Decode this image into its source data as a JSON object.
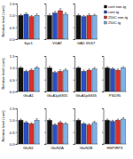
{
  "chart_data": [
    {
      "type": "bar",
      "title": "Syn1",
      "y_label": "Relative level (sum)",
      "tick_labels": "y",
      "categories": [
        null
      ],
      "ylim": [
        0,
        1.5
      ],
      "yticks": [
        {
          "value": 0,
          "label": "0.0"
        },
        {
          "value": 0.5,
          "label": "0.5"
        },
        {
          "value": 1,
          "label": "1.0"
        },
        {
          "value": 1.5,
          "label": "1.5"
        }
      ],
      "series": [
        {
          "color": "#111111",
          "values": [
            1.0
          ],
          "errors": [
            0.05
          ]
        },
        {
          "color": "#2b4fc4",
          "values": [
            1.05
          ],
          "errors": [
            0.06
          ]
        },
        {
          "color": "#d9302c",
          "values": [
            0.95
          ],
          "errors": [
            0.05
          ]
        },
        {
          "color": "#7fb2e8",
          "values": [
            1.0
          ],
          "errors": [
            0.06
          ]
        }
      ]
    },
    {
      "type": "bar",
      "title": "VGAT",
      "tick_labels": false,
      "categories": [
        null
      ],
      "ylim": [
        0,
        1.5
      ],
      "yticks": [
        0,
        0.5,
        1,
        1.5
      ],
      "series": [
        {
          "color": "#111111",
          "values": [
            1.0
          ],
          "errors": [
            0.06
          ]
        },
        {
          "color": "#2b4fc4",
          "values": [
            1.1
          ],
          "errors": [
            0.07
          ]
        },
        {
          "color": "#d9302c",
          "values": [
            1.2
          ],
          "errors": [
            0.08
          ]
        },
        {
          "color": "#7fb2e8",
          "values": [
            1.05
          ],
          "errors": [
            0.06
          ]
        }
      ]
    },
    {
      "type": "bar",
      "title": "GAD 65/67",
      "tick_labels": false,
      "legend": "right",
      "categories": [
        null
      ],
      "ylim": [
        0,
        1.5
      ],
      "yticks": [
        0,
        0.5,
        1,
        1.5
      ],
      "series": [
        {
          "name": "cont non-tg",
          "color": "#111111",
          "values": [
            1.0
          ],
          "errors": [
            0.05
          ]
        },
        {
          "name": "cont tg",
          "color": "#2b4fc4",
          "values": [
            0.95
          ],
          "errors": [
            0.05
          ]
        },
        {
          "name": "250C non-tg",
          "color": "#d9302c",
          "values": [
            1.0
          ],
          "errors": [
            0.06
          ]
        },
        {
          "name": "250C tg",
          "color": "#7fb2e8",
          "values": [
            1.0
          ],
          "errors": [
            0.05
          ]
        }
      ]
    },
    {
      "type": "bar",
      "title": "GluA1",
      "y_label": "Relative level (sum)",
      "tick_labels": "y",
      "categories": [
        null
      ],
      "ylim": [
        0,
        1.5
      ],
      "yticks": [
        {
          "value": 0,
          "label": "0.0"
        },
        {
          "value": 0.5,
          "label": "0.5"
        },
        {
          "value": 1,
          "label": "1.0"
        },
        {
          "value": 1.5,
          "label": "1.5"
        }
      ],
      "series": [
        {
          "color": "#111111",
          "values": [
            1.0
          ],
          "errors": [
            0.05
          ]
        },
        {
          "color": "#2b4fc4",
          "values": [
            0.85
          ],
          "errors": [
            0.05
          ]
        },
        {
          "color": "#d9302c",
          "values": [
            0.9
          ],
          "errors": [
            0.06
          ]
        },
        {
          "color": "#7fb2e8",
          "values": [
            1.0
          ],
          "errors": [
            0.05
          ]
        }
      ]
    },
    {
      "type": "bar",
      "title": "GluA1pS831",
      "tick_labels": false,
      "categories": [
        null
      ],
      "ylim": [
        0,
        1.5
      ],
      "yticks": [
        0,
        0.5,
        1,
        1.5
      ],
      "series": [
        {
          "color": "#111111",
          "values": [
            1.0
          ],
          "errors": [
            0.06
          ]
        },
        {
          "color": "#2b4fc4",
          "values": [
            0.8
          ],
          "errors": [
            0.05
          ]
        },
        {
          "color": "#d9302c",
          "values": [
            0.85
          ],
          "errors": [
            0.06
          ]
        },
        {
          "color": "#7fb2e8",
          "values": [
            0.9
          ],
          "errors": [
            0.05
          ]
        }
      ]
    },
    {
      "type": "bar",
      "title": "GluA1pS845",
      "tick_labels": false,
      "categories": [
        null
      ],
      "ylim": [
        0,
        1.5
      ],
      "yticks": [
        0,
        0.5,
        1,
        1.5
      ],
      "series": [
        {
          "color": "#111111",
          "values": [
            1.0
          ],
          "errors": [
            0.05
          ]
        },
        {
          "color": "#2b4fc4",
          "values": [
            0.85
          ],
          "errors": [
            0.05
          ]
        },
        {
          "color": "#d9302c",
          "values": [
            0.9
          ],
          "errors": [
            0.05
          ]
        },
        {
          "color": "#7fb2e8",
          "values": [
            0.95
          ],
          "errors": [
            0.06
          ]
        }
      ]
    },
    {
      "type": "bar",
      "title": "PSD95",
      "tick_labels": false,
      "categories": [
        null
      ],
      "ylim": [
        0,
        1.5
      ],
      "yticks": [
        0,
        0.5,
        1,
        1.5
      ],
      "series": [
        {
          "color": "#111111",
          "values": [
            1.0
          ],
          "errors": [
            0.05
          ]
        },
        {
          "color": "#2b4fc4",
          "values": [
            0.95
          ],
          "errors": [
            0.05
          ]
        },
        {
          "color": "#d9302c",
          "values": [
            0.9
          ],
          "errors": [
            0.05
          ]
        },
        {
          "color": "#7fb2e8",
          "values": [
            1.0
          ],
          "errors": [
            0.05
          ]
        }
      ]
    },
    {
      "type": "bar",
      "title": "GluN1",
      "y_label": "Relative level (sum)",
      "tick_labels": "y",
      "categories": [
        null
      ],
      "ylim": [
        0,
        1.5
      ],
      "yticks": [
        {
          "value": 0,
          "label": "0.0"
        },
        {
          "value": 0.5,
          "label": "0.5"
        },
        {
          "value": 1,
          "label": "1.0"
        },
        {
          "value": 1.5,
          "label": "1.5"
        }
      ],
      "series": [
        {
          "color": "#111111",
          "values": [
            1.0
          ],
          "errors": [
            0.05
          ]
        },
        {
          "color": "#2b4fc4",
          "values": [
            0.9
          ],
          "errors": [
            0.05
          ]
        },
        {
          "color": "#d9302c",
          "values": [
            0.85
          ],
          "errors": [
            0.05
          ]
        },
        {
          "color": "#7fb2e8",
          "values": [
            1.0
          ],
          "errors": [
            0.06
          ]
        }
      ]
    },
    {
      "type": "bar",
      "title": "GluN2A",
      "tick_labels": false,
      "categories": [
        null
      ],
      "ylim": [
        0,
        1.5
      ],
      "yticks": [
        0,
        0.5,
        1,
        1.5
      ],
      "series": [
        {
          "color": "#111111",
          "values": [
            1.0
          ],
          "errors": [
            0.05
          ]
        },
        {
          "color": "#2b4fc4",
          "values": [
            0.8
          ],
          "errors": [
            0.05
          ]
        },
        {
          "color": "#d9302c",
          "values": [
            0.9
          ],
          "errors": [
            0.06
          ]
        },
        {
          "color": "#7fb2e8",
          "values": [
            0.85
          ],
          "errors": [
            0.05
          ]
        }
      ]
    },
    {
      "type": "bar",
      "title": "GluN2B",
      "tick_labels": false,
      "categories": [
        null
      ],
      "ylim": [
        0,
        1.5
      ],
      "yticks": [
        0,
        0.5,
        1,
        1.5
      ],
      "series": [
        {
          "color": "#111111",
          "values": [
            1.0
          ],
          "errors": [
            0.05
          ]
        },
        {
          "color": "#2b4fc4",
          "values": [
            0.85
          ],
          "errors": [
            0.05
          ]
        },
        {
          "color": "#d9302c",
          "values": [
            0.8
          ],
          "errors": [
            0.05
          ]
        },
        {
          "color": "#7fb2e8",
          "values": [
            0.9
          ],
          "errors": [
            0.05
          ]
        }
      ]
    },
    {
      "type": "bar",
      "title": "HSP/RP3",
      "tick_labels": false,
      "categories": [
        null
      ],
      "ylim": [
        0,
        1.5
      ],
      "yticks": [
        0,
        0.5,
        1,
        1.5
      ],
      "series": [
        {
          "color": "#111111",
          "values": [
            1.0
          ],
          "errors": [
            0.05
          ]
        },
        {
          "color": "#2b4fc4",
          "values": [
            0.95
          ],
          "errors": [
            0.05
          ]
        },
        {
          "color": "#d9302c",
          "values": [
            1.0
          ],
          "errors": [
            0.05
          ]
        },
        {
          "color": "#7fb2e8",
          "values": [
            1.05
          ],
          "errors": [
            0.06
          ]
        }
      ]
    }
  ]
}
